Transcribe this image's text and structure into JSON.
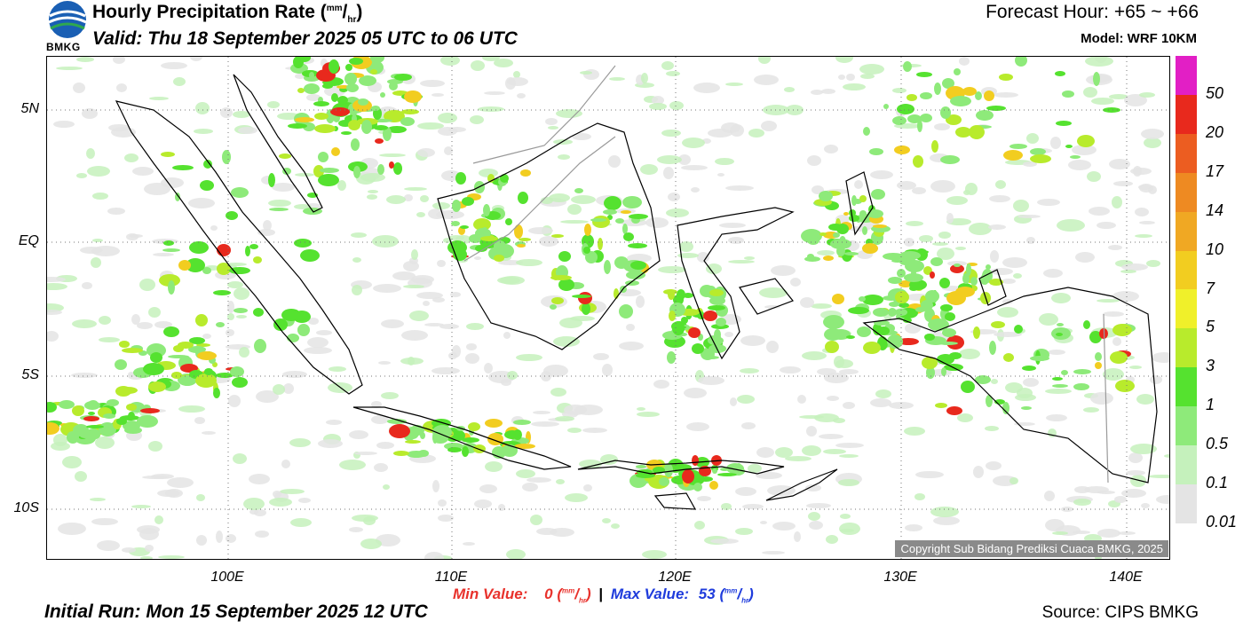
{
  "header": {
    "title": "Hourly Precipitation Rate",
    "unit_num": "mm",
    "unit_den": "hr",
    "valid": "Valid: Thu 18 September 2025 05 UTC to 06 UTC",
    "forecast_hour": "Forecast Hour: +65 ~ +66",
    "model": "Model: WRF 10KM",
    "logo_text": "BMKG"
  },
  "footer": {
    "initial_run": "Initial Run: Mon 15 September 2025 12 UTC",
    "source": "Source: CIPS BMKG",
    "min_label": "Min Value:",
    "min_value": "0",
    "max_label": "Max Value:",
    "max_value": "53",
    "separator": "|",
    "copyright": "Copyright Sub Bidang Prediksi Cuaca BMKG, 2025"
  },
  "axes": {
    "lat_labels": [
      "5N",
      "EQ",
      "5S",
      "10S"
    ],
    "lon_labels": [
      "100E",
      "110E",
      "120E",
      "130E",
      "140E"
    ]
  },
  "legend": {
    "labels": [
      "50",
      "20",
      "17",
      "14",
      "10",
      "7",
      "5",
      "3",
      "1",
      "0.5",
      "0.1",
      "0.01"
    ],
    "colors": [
      "#e21fc5",
      "#e8291d",
      "#ec5d21",
      "#ee8a22",
      "#f0a823",
      "#f2cd20",
      "#f0f02a",
      "#b8eb2c",
      "#55e22f",
      "#8eea7a",
      "#c5f1bc",
      "#e4e4e4"
    ]
  }
}
